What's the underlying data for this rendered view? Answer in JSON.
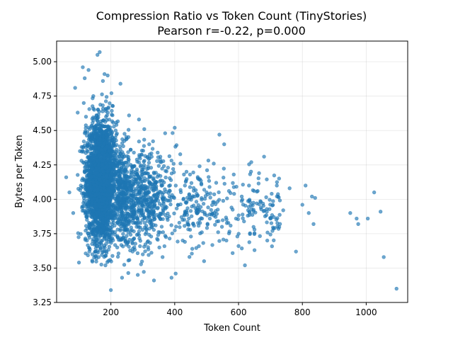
{
  "chart_data": {
    "type": "scatter",
    "title": "Compression Ratio vs Token Count (TinyStories)",
    "subtitle": "Pearson r=-0.22, p=0.000",
    "xlabel": "Token Count",
    "ylabel": "Bytes per Token",
    "xlim": [
      30,
      1130
    ],
    "ylim": [
      3.25,
      5.15
    ],
    "xticks": [
      200,
      400,
      600,
      800,
      1000
    ],
    "xtick_labels": [
      "200",
      "400",
      "600",
      "800",
      "1000"
    ],
    "yticks": [
      3.25,
      3.5,
      3.75,
      4.0,
      4.25,
      4.5,
      4.75,
      5.0
    ],
    "ytick_labels": [
      "3.25",
      "3.50",
      "3.75",
      "4.00",
      "4.25",
      "4.50",
      "4.75",
      "5.00"
    ],
    "grid": true,
    "marker_color": "#1f77b4",
    "marker_alpha": 0.65,
    "points": [
      [
        60,
        4.16
      ],
      [
        70,
        4.05
      ],
      [
        82,
        3.9
      ],
      [
        88,
        4.81
      ],
      [
        96,
        4.63
      ],
      [
        100,
        3.54
      ],
      [
        103,
        4.35
      ],
      [
        108,
        4.28
      ],
      [
        112,
        4.96
      ],
      [
        115,
        4.7
      ],
      [
        118,
        4.88
      ],
      [
        122,
        4.6
      ],
      [
        125,
        3.7
      ],
      [
        128,
        4.4
      ],
      [
        130,
        4.94
      ],
      [
        133,
        3.72
      ],
      [
        136,
        4.2
      ],
      [
        140,
        4.3
      ],
      [
        142,
        3.6
      ],
      [
        145,
        4.75
      ],
      [
        148,
        4.1
      ],
      [
        150,
        3.95
      ],
      [
        153,
        3.85
      ],
      [
        156,
        4.45
      ],
      [
        158,
        5.05
      ],
      [
        160,
        4.65
      ],
      [
        162,
        3.58
      ],
      [
        165,
        5.07
      ],
      [
        168,
        4.55
      ],
      [
        170,
        3.75
      ],
      [
        172,
        4.22
      ],
      [
        175,
        4.86
      ],
      [
        178,
        4.0
      ],
      [
        180,
        4.91
      ],
      [
        183,
        3.52
      ],
      [
        186,
        4.12
      ],
      [
        190,
        4.9
      ],
      [
        193,
        3.8
      ],
      [
        196,
        4.38
      ],
      [
        200,
        3.34
      ],
      [
        205,
        4.68
      ],
      [
        210,
        3.92
      ],
      [
        215,
        4.5
      ],
      [
        220,
        3.65
      ],
      [
        225,
        4.08
      ],
      [
        230,
        4.84
      ],
      [
        235,
        3.43
      ],
      [
        240,
        4.25
      ],
      [
        245,
        3.7
      ],
      [
        250,
        4.44
      ],
      [
        255,
        3.98
      ],
      [
        262,
        4.36
      ],
      [
        268,
        3.62
      ],
      [
        275,
        4.18
      ],
      [
        280,
        3.88
      ],
      [
        288,
        4.58
      ],
      [
        295,
        4.02
      ],
      [
        300,
        3.6
      ],
      [
        305,
        4.28
      ],
      [
        312,
        3.78
      ],
      [
        320,
        4.4
      ],
      [
        328,
        3.94
      ],
      [
        335,
        3.41
      ],
      [
        340,
        4.12
      ],
      [
        348,
        3.74
      ],
      [
        355,
        4.31
      ],
      [
        362,
        3.58
      ],
      [
        370,
        4.48
      ],
      [
        378,
        3.85
      ],
      [
        385,
        4.06
      ],
      [
        390,
        3.43
      ],
      [
        395,
        4.22
      ],
      [
        400,
        4.52
      ],
      [
        403,
        3.46
      ],
      [
        410,
        3.96
      ],
      [
        418,
        4.26
      ],
      [
        425,
        3.7
      ],
      [
        432,
        4.1
      ],
      [
        440,
        3.82
      ],
      [
        448,
        4.18
      ],
      [
        455,
        3.64
      ],
      [
        462,
        4.02
      ],
      [
        470,
        3.9
      ],
      [
        478,
        4.24
      ],
      [
        485,
        3.76
      ],
      [
        492,
        3.55
      ],
      [
        500,
        4.05
      ],
      [
        510,
        3.86
      ],
      [
        520,
        3.98
      ],
      [
        530,
        4.12
      ],
      [
        540,
        4.47
      ],
      [
        548,
        3.8
      ],
      [
        555,
        4.4
      ],
      [
        562,
        3.7
      ],
      [
        570,
        4.06
      ],
      [
        578,
        3.94
      ],
      [
        585,
        4.18
      ],
      [
        592,
        3.86
      ],
      [
        600,
        3.66
      ],
      [
        610,
        4.02
      ],
      [
        620,
        3.52
      ],
      [
        630,
        3.92
      ],
      [
        640,
        4.27
      ],
      [
        650,
        3.78
      ],
      [
        660,
        4.06
      ],
      [
        670,
        3.94
      ],
      [
        680,
        4.31
      ],
      [
        690,
        3.7
      ],
      [
        700,
        3.86
      ],
      [
        720,
        4.1
      ],
      [
        740,
        3.92
      ],
      [
        760,
        4.08
      ],
      [
        780,
        3.62
      ],
      [
        800,
        3.96
      ],
      [
        810,
        4.1
      ],
      [
        820,
        3.9
      ],
      [
        830,
        4.02
      ],
      [
        840,
        4.01
      ],
      [
        835,
        3.82
      ],
      [
        950,
        3.9
      ],
      [
        970,
        3.86
      ],
      [
        975,
        3.82
      ],
      [
        1005,
        3.86
      ],
      [
        1025,
        4.05
      ],
      [
        1045,
        3.91
      ],
      [
        1055,
        3.58
      ],
      [
        1095,
        3.35
      ]
    ]
  }
}
